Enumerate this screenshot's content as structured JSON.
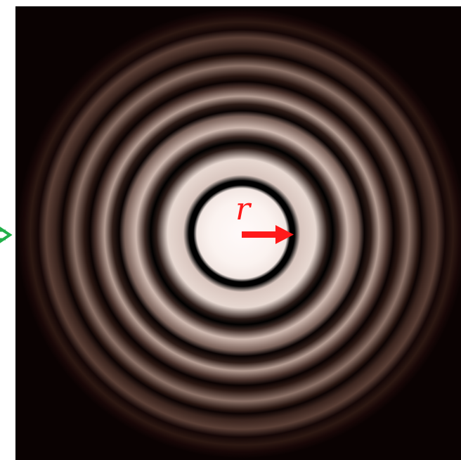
{
  "figure": {
    "symbol_label": "r",
    "colors": {
      "background": "#ffffff",
      "field": "#0a0202",
      "ring_tint": "#e8d8d0",
      "core": "#fffafa",
      "radius_arrow": "#ff1a1a",
      "side_arrow": "#22b04a"
    },
    "icons": {
      "radius_arrow": "arrow-right-icon",
      "side_arrow": "arrow-right-icon"
    }
  }
}
